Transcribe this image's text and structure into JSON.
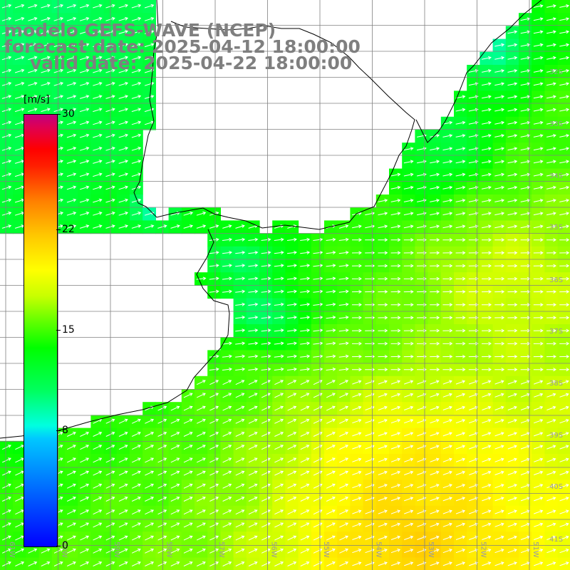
{
  "title": {
    "line1": "modelo GEFS-WAVE (NCEP)",
    "line2": "forecast date: 2025-04-12 18:00:00",
    "line3": "valid date: 2025-04-22 18:00:00"
  },
  "colorbar": {
    "units": "[m/s]",
    "min": 0,
    "max": 30,
    "ticks": [
      {
        "value": 30,
        "label": "30"
      },
      {
        "value": 22,
        "label": "22"
      },
      {
        "value": 15,
        "label": "15"
      },
      {
        "value": 8,
        "label": "8"
      },
      {
        "value": 0,
        "label": "0"
      }
    ]
  },
  "map": {
    "lon_labels": [
      "61W",
      "60W",
      "59W",
      "58W",
      "57W",
      "56W",
      "55W",
      "54W",
      "53W",
      "52W",
      "51W"
    ],
    "lat_labels": [
      "32S",
      "33S",
      "34S",
      "35S",
      "36S",
      "37S",
      "38S",
      "39S",
      "40S",
      "41S"
    ],
    "colors": {
      "land": "#ffffff",
      "coast": "#000000",
      "grid": "#808080",
      "arrow": "#ffffff",
      "title": "#7f7f7f"
    }
  }
}
